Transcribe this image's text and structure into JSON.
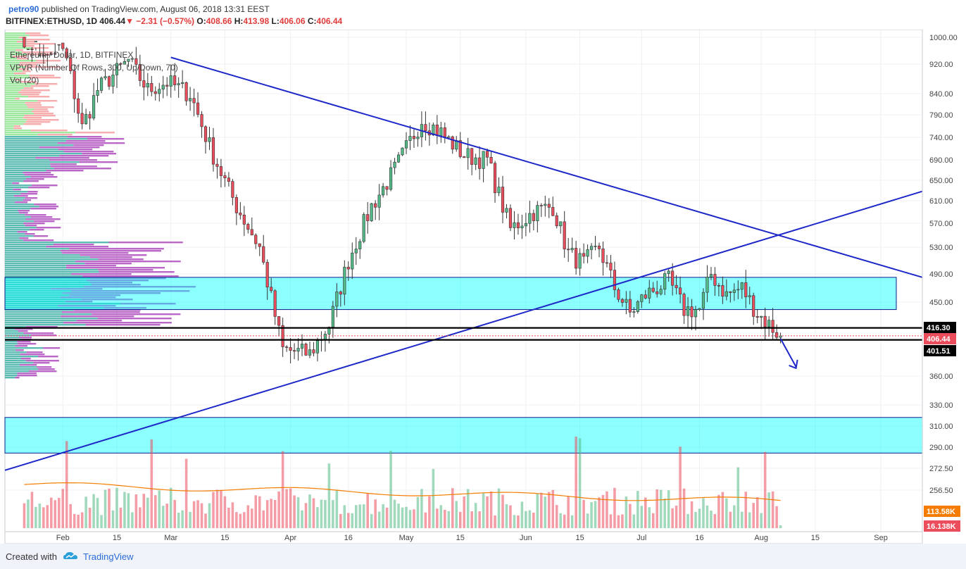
{
  "header": {
    "author": "petro90",
    "published_text": "published on TradingView.com, August 06, 2018 13:31 EEST",
    "symbol": "BITFINEX:ETHUSD, 1D",
    "price": "406.44",
    "change_arrow": "▼",
    "change": "−2.31 (−0.57%)",
    "o_label": "O:",
    "o_value": "408.66",
    "h_label": "H:",
    "h_value": "413.98",
    "l_label": "L:",
    "l_value": "406.06",
    "c_label": "C:",
    "c_value": "406.44"
  },
  "legend": {
    "line1": "Ethereum / Dollar, 1D, BITFINEX",
    "line2": "VPVR (Number Of Rows, 300, Up/Down, 70)",
    "line3": "Vol (20)"
  },
  "price_labels": {
    "resistance": "416.30",
    "current": "406.44",
    "support": "401.51",
    "vol_ma": "113.58K",
    "vol_current": "16.138K"
  },
  "footer": {
    "created_with": "Created with",
    "brand": "TradingView"
  },
  "colors": {
    "up": "#53b987",
    "down": "#eb4d5c",
    "trendline": "#1e28c8",
    "zone": "#00ffff",
    "vpvr_up": "#26a69a",
    "vpvr_down": "#9c27b0",
    "vol_ma": "#f57c00"
  },
  "chart_data": {
    "type": "candlestick",
    "title": "Ethereum / Dollar, 1D, BITFINEX",
    "y_scale": "log",
    "y_ticks": [
      1000,
      920,
      840,
      790,
      740,
      690,
      650,
      610,
      570,
      530,
      490,
      450,
      360,
      330,
      310,
      290,
      272.5,
      256.5
    ],
    "x_ticks": [
      "Feb",
      "15",
      "Mar",
      "15",
      "Apr",
      "16",
      "May",
      "15",
      "Jun",
      "15",
      "Jul",
      "16",
      "Aug",
      "15",
      "Sep"
    ],
    "x_range": [
      "2018-01-19",
      "2018-09-05"
    ],
    "close_path": [
      [
        "2018-01-22",
        1000
      ],
      [
        "2018-01-28",
        1060
      ],
      [
        "2018-02-02",
        930
      ],
      [
        "2018-02-06",
        760
      ],
      [
        "2018-02-10",
        850
      ],
      [
        "2018-02-18",
        930
      ],
      [
        "2018-02-23",
        850
      ],
      [
        "2018-02-28",
        870
      ],
      [
        "2018-03-06",
        840
      ],
      [
        "2018-03-12",
        700
      ],
      [
        "2018-03-18",
        600
      ],
      [
        "2018-03-24",
        530
      ],
      [
        "2018-03-30",
        390
      ],
      [
        "2018-04-06",
        385
      ],
      [
        "2018-04-11",
        420
      ],
      [
        "2018-04-16",
        510
      ],
      [
        "2018-04-22",
        600
      ],
      [
        "2018-04-28",
        670
      ],
      [
        "2018-05-05",
        780
      ],
      [
        "2018-05-10",
        750
      ],
      [
        "2018-05-16",
        700
      ],
      [
        "2018-05-22",
        690
      ],
      [
        "2018-05-28",
        560
      ],
      [
        "2018-06-03",
        590
      ],
      [
        "2018-06-08",
        600
      ],
      [
        "2018-06-12",
        520
      ],
      [
        "2018-06-16",
        505
      ],
      [
        "2018-06-20",
        530
      ],
      [
        "2018-06-24",
        470
      ],
      [
        "2018-06-28",
        435
      ],
      [
        "2018-07-02",
        460
      ],
      [
        "2018-07-08",
        480
      ],
      [
        "2018-07-12",
        440
      ],
      [
        "2018-07-16",
        440
      ],
      [
        "2018-07-19",
        490
      ],
      [
        "2018-07-23",
        460
      ],
      [
        "2018-07-27",
        470
      ],
      [
        "2018-07-31",
        435
      ],
      [
        "2018-08-06",
        406.44
      ]
    ],
    "horizontal_levels": [
      416.3,
      401.51
    ],
    "zones": [
      [
        440,
        485
      ],
      [
        285,
        318
      ]
    ],
    "trendlines": [
      {
        "from": [
          "2018-03-01",
          1060
        ],
        "to": [
          "2018-09-05",
          485
        ]
      },
      {
        "from": [
          "2018-01-19",
          271
        ],
        "to": [
          "2018-09-05",
          628
        ]
      }
    ],
    "volume_ma": 113.58,
    "volume_last": 16.138
  }
}
